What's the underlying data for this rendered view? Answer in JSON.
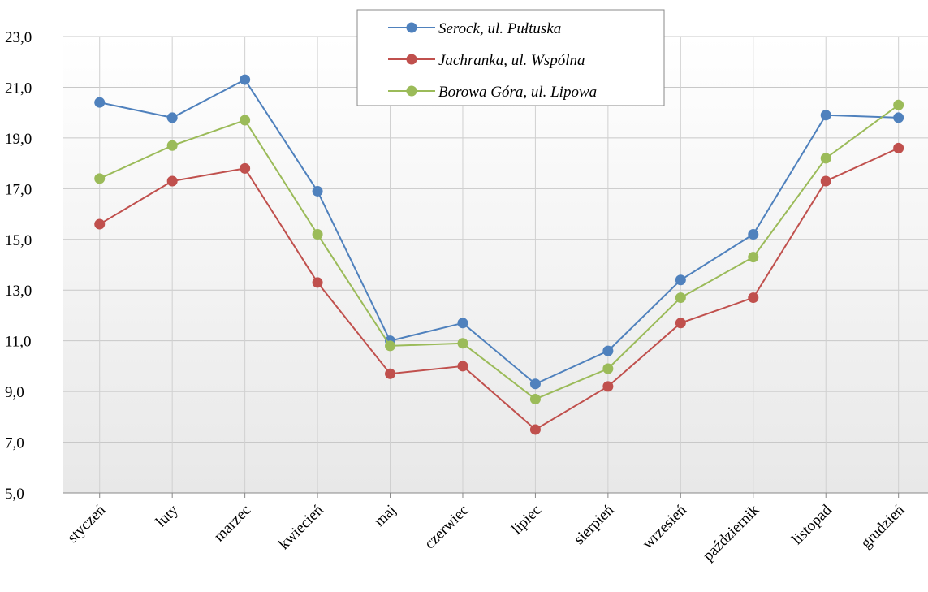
{
  "chart_data": {
    "type": "line",
    "categories": [
      "styczeń",
      "luty",
      "marzec",
      "kwiecień",
      "maj",
      "czerwiec",
      "lipiec",
      "sierpień",
      "wrzesień",
      "październik",
      "listopad",
      "grudzień"
    ],
    "series": [
      {
        "name": "Serock, ul. Pułtuska",
        "color": "#4f81bd",
        "values": [
          20.4,
          19.8,
          21.3,
          16.9,
          11.0,
          11.7,
          9.3,
          10.6,
          13.4,
          15.2,
          19.9,
          19.8
        ]
      },
      {
        "name": "Jachranka, ul. Wspólna",
        "color": "#c0504d",
        "values": [
          15.6,
          17.3,
          17.8,
          13.3,
          9.7,
          10.0,
          7.5,
          9.2,
          11.7,
          12.7,
          17.3,
          18.6
        ]
      },
      {
        "name": "Borowa Góra, ul. Lipowa",
        "color": "#9bbb59",
        "values": [
          17.4,
          18.7,
          19.7,
          15.2,
          10.8,
          10.9,
          8.7,
          9.9,
          12.7,
          14.3,
          18.2,
          20.3
        ]
      }
    ],
    "ylim": [
      5,
      23
    ],
    "yticks": [
      {
        "value": 5,
        "label": "5,0"
      },
      {
        "value": 7,
        "label": "7,0"
      },
      {
        "value": 9,
        "label": "9,0"
      },
      {
        "value": 11,
        "label": "11,0"
      },
      {
        "value": 13,
        "label": "13,0"
      },
      {
        "value": 15,
        "label": "15,0"
      },
      {
        "value": 17,
        "label": "17,0"
      },
      {
        "value": 19,
        "label": "19,0"
      },
      {
        "value": 21,
        "label": "21,0"
      },
      {
        "value": 23,
        "label": "23,0"
      }
    ],
    "grid": true,
    "legend": "top"
  }
}
